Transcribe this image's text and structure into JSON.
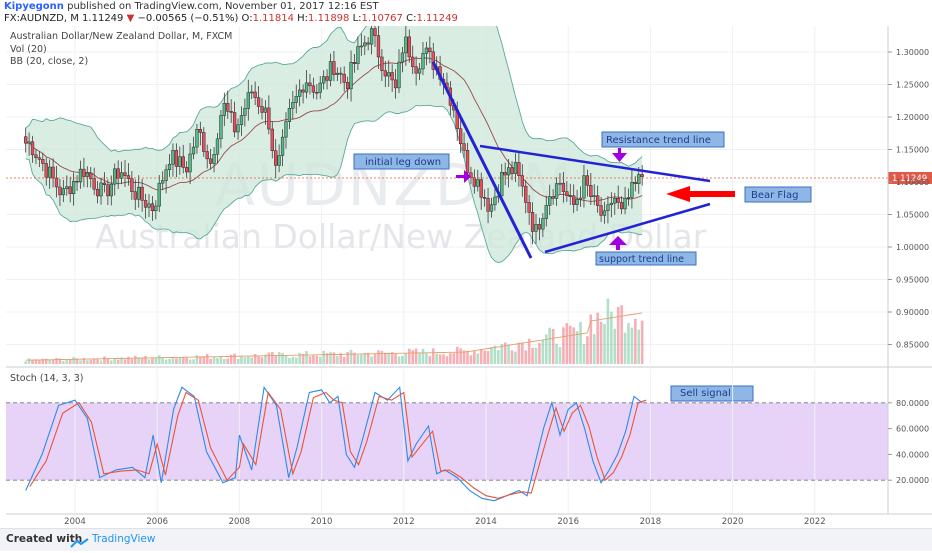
{
  "header": {
    "author": "Kipyegonn",
    "published_text": "published on TradingView.com, November 01, 2017 12:16 EST",
    "symbol": "FX:AUDNZD, M",
    "last": "1.11249",
    "change": "−0.00565 (−0.51%)",
    "open_label": "O:",
    "open": "1.11814",
    "high_label": "H:",
    "high": "1.11898",
    "low_label": "L:",
    "low": "1.10767",
    "close_label": "C:",
    "close": "1.11249"
  },
  "legend": {
    "title": "Australian Dollar/New Zealand Dollar, M, FXCM",
    "vol": "Vol (20)",
    "bb": "BB (20, close, 2)",
    "stoch": "Stoch (14, 3, 3)"
  },
  "watermark": {
    "symbol": "AUDNZD, M",
    "name": "Australian Dollar/New Zealand Dollar"
  },
  "price_tag": "1.11249",
  "annotations": {
    "initial_leg": "initial leg down",
    "resistance": "Resistance trend line",
    "support": "support trend line",
    "bear_flag": "Bear Flag",
    "sell_signal": "Sell signal"
  },
  "footer": {
    "created_with": "Created with",
    "brand": "TradingView"
  },
  "colors": {
    "bull": "#53b987",
    "bear": "#eb4d5c",
    "band": "#cce7d9",
    "bandLine": "#5ba99a",
    "basis": "#9b4a4a",
    "trend": "#2323d6",
    "arrow_purple": "#a000e0",
    "arrow_red": "#ff0000",
    "stoch_bg": "#e7d3f7",
    "k": "#2f8ae5",
    "d": "#e8543b"
  },
  "chart_data": [
    {
      "type": "candlestick",
      "title": "Australian Dollar/New Zealand Dollar, M, FXCM",
      "x_ticks": [
        "2004",
        "2006",
        "2008",
        "2010",
        "2012",
        "2014",
        "2016",
        "2018",
        "2020",
        "2022"
      ],
      "y_ticks": [
        "1.30000",
        "1.25000",
        "1.20000",
        "1.15000",
        "1.10000",
        "1.05000",
        "1.00000",
        "0.95000",
        "0.90000",
        "0.85000"
      ],
      "ylim": [
        0.82,
        1.34
      ],
      "grid": true,
      "path_points_year_close": [
        [
          2002.9,
          1.16
        ],
        [
          2003.3,
          1.12
        ],
        [
          2003.7,
          1.08
        ],
        [
          2004.2,
          1.12
        ],
        [
          2004.7,
          1.08
        ],
        [
          2005.1,
          1.12
        ],
        [
          2005.5,
          1.08
        ],
        [
          2005.9,
          1.06
        ],
        [
          2006.3,
          1.14
        ],
        [
          2006.7,
          1.12
        ],
        [
          2007.0,
          1.18
        ],
        [
          2007.3,
          1.13
        ],
        [
          2007.6,
          1.22
        ],
        [
          2007.9,
          1.18
        ],
        [
          2008.3,
          1.24
        ],
        [
          2008.7,
          1.2
        ],
        [
          2008.9,
          1.11
        ],
        [
          2009.2,
          1.2
        ],
        [
          2009.6,
          1.26
        ],
        [
          2009.9,
          1.24
        ],
        [
          2010.3,
          1.28
        ],
        [
          2010.6,
          1.25
        ],
        [
          2010.9,
          1.3
        ],
        [
          2011.2,
          1.33
        ],
        [
          2011.5,
          1.28
        ],
        [
          2011.8,
          1.24
        ],
        [
          2012.0,
          1.32
        ],
        [
          2012.3,
          1.28
        ],
        [
          2012.5,
          1.3
        ],
        [
          2012.9,
          1.27
        ],
        [
          2013.2,
          1.22
        ],
        [
          2013.5,
          1.13
        ],
        [
          2013.8,
          1.1
        ],
        [
          2014.1,
          1.06
        ],
        [
          2014.4,
          1.11
        ],
        [
          2014.7,
          1.12
        ],
        [
          2015.0,
          1.07
        ],
        [
          2015.2,
          1.02
        ],
        [
          2015.5,
          1.08
        ],
        [
          2015.8,
          1.1
        ],
        [
          2016.1,
          1.06
        ],
        [
          2016.4,
          1.1
        ],
        [
          2016.6,
          1.07
        ],
        [
          2016.9,
          1.04
        ],
        [
          2017.1,
          1.08
        ],
        [
          2017.3,
          1.05
        ],
        [
          2017.5,
          1.08
        ],
        [
          2017.8,
          1.11
        ]
      ]
    },
    {
      "type": "bar",
      "title": "Vol (20)",
      "note": "monthly volume bars, rising strongly after 2014 with a peak in 2017"
    },
    {
      "type": "line",
      "title": "Stoch (14, 3, 3)",
      "y_ticks": [
        "80.0000",
        "60.0000",
        "40.0000",
        "20.0000"
      ],
      "ylim": [
        0,
        100
      ],
      "bands": [
        20,
        80
      ],
      "series": [
        {
          "name": "%K",
          "points": [
            [
              2002.8,
              12
            ],
            [
              2003.2,
              40
            ],
            [
              2003.6,
              78
            ],
            [
              2004.0,
              82
            ],
            [
              2004.3,
              68
            ],
            [
              2004.6,
              22
            ],
            [
              2005.0,
              28
            ],
            [
              2005.4,
              30
            ],
            [
              2005.7,
              22
            ],
            [
              2005.9,
              55
            ],
            [
              2006.1,
              18
            ],
            [
              2006.4,
              75
            ],
            [
              2006.6,
              92
            ],
            [
              2006.9,
              85
            ],
            [
              2007.2,
              42
            ],
            [
              2007.6,
              18
            ],
            [
              2007.9,
              22
            ],
            [
              2008.0,
              55
            ],
            [
              2008.3,
              28
            ],
            [
              2008.6,
              92
            ],
            [
              2008.9,
              78
            ],
            [
              2009.2,
              22
            ],
            [
              2009.4,
              45
            ],
            [
              2009.7,
              88
            ],
            [
              2010.0,
              90
            ],
            [
              2010.2,
              80
            ],
            [
              2010.4,
              85
            ],
            [
              2010.6,
              40
            ],
            [
              2010.8,
              30
            ],
            [
              2011.0,
              52
            ],
            [
              2011.3,
              88
            ],
            [
              2011.6,
              82
            ],
            [
              2011.9,
              92
            ],
            [
              2012.1,
              35
            ],
            [
              2012.3,
              48
            ],
            [
              2012.6,
              62
            ],
            [
              2012.8,
              25
            ],
            [
              2013.0,
              28
            ],
            [
              2013.3,
              22
            ],
            [
              2013.6,
              12
            ],
            [
              2013.9,
              6
            ],
            [
              2014.2,
              4
            ],
            [
              2014.5,
              8
            ],
            [
              2014.8,
              12
            ],
            [
              2015.0,
              8
            ],
            [
              2015.4,
              60
            ],
            [
              2015.6,
              80
            ],
            [
              2015.8,
              55
            ],
            [
              2016.0,
              75
            ],
            [
              2016.2,
              80
            ],
            [
              2016.4,
              60
            ],
            [
              2016.6,
              35
            ],
            [
              2016.8,
              18
            ],
            [
              2017.0,
              28
            ],
            [
              2017.2,
              40
            ],
            [
              2017.4,
              58
            ],
            [
              2017.6,
              85
            ],
            [
              2017.8,
              80
            ]
          ]
        },
        {
          "name": "%D",
          "points": [
            [
              2002.9,
              15
            ],
            [
              2003.3,
              35
            ],
            [
              2003.7,
              72
            ],
            [
              2004.1,
              80
            ],
            [
              2004.4,
              65
            ],
            [
              2004.7,
              25
            ],
            [
              2005.1,
              27
            ],
            [
              2005.5,
              28
            ],
            [
              2005.8,
              25
            ],
            [
              2006.0,
              48
            ],
            [
              2006.2,
              24
            ],
            [
              2006.5,
              70
            ],
            [
              2006.7,
              88
            ],
            [
              2007.0,
              82
            ],
            [
              2007.3,
              45
            ],
            [
              2007.7,
              20
            ],
            [
              2008.0,
              30
            ],
            [
              2008.1,
              48
            ],
            [
              2008.4,
              32
            ],
            [
              2008.7,
              88
            ],
            [
              2009.0,
              75
            ],
            [
              2009.3,
              25
            ],
            [
              2009.5,
              42
            ],
            [
              2009.8,
              84
            ],
            [
              2010.1,
              88
            ],
            [
              2010.3,
              82
            ],
            [
              2010.5,
              80
            ],
            [
              2010.7,
              42
            ],
            [
              2010.9,
              32
            ],
            [
              2011.1,
              50
            ],
            [
              2011.4,
              85
            ],
            [
              2011.7,
              82
            ],
            [
              2012.0,
              88
            ],
            [
              2012.2,
              38
            ],
            [
              2012.4,
              46
            ],
            [
              2012.7,
              58
            ],
            [
              2012.9,
              27
            ],
            [
              2013.1,
              28
            ],
            [
              2013.4,
              22
            ],
            [
              2013.7,
              14
            ],
            [
              2014.0,
              8
            ],
            [
              2014.3,
              6
            ],
            [
              2014.6,
              9
            ],
            [
              2014.9,
              11
            ],
            [
              2015.1,
              10
            ],
            [
              2015.5,
              55
            ],
            [
              2015.7,
              76
            ],
            [
              2015.9,
              58
            ],
            [
              2016.1,
              72
            ],
            [
              2016.3,
              78
            ],
            [
              2016.5,
              62
            ],
            [
              2016.7,
              38
            ],
            [
              2016.9,
              20
            ],
            [
              2017.1,
              26
            ],
            [
              2017.3,
              38
            ],
            [
              2017.5,
              55
            ],
            [
              2017.7,
              80
            ],
            [
              2017.9,
              82
            ]
          ]
        }
      ]
    }
  ]
}
